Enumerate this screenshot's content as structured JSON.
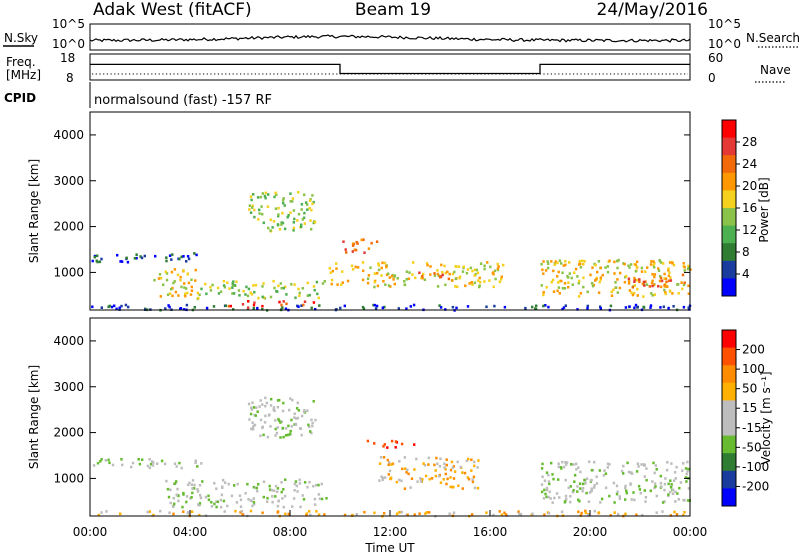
{
  "header": {
    "station": "Adak West (fitACF)",
    "beam": "Beam 19",
    "date": "24/May/2016"
  },
  "left_labels": {
    "nsky": "N.Sky",
    "freq_line1": "Freq.",
    "freq_line2": "[MHz]",
    "cpid": "CPID"
  },
  "right_labels": {
    "nsearch": "N.Search",
    "nave": "Nave"
  },
  "cpid_text": "normalsound (fast) -157 RF",
  "colors": {
    "power_scale": [
      "#0000ff",
      "#1a3c9e",
      "#2e7d32",
      "#4caf50",
      "#8bc34a",
      "#f5d01c",
      "#ff9800",
      "#f26a0a",
      "#e53935",
      "#ff0000"
    ],
    "velocity_scale": [
      "#0000ff",
      "#1a3c9e",
      "#2e7d32",
      "#66bb30",
      "#bdbdbd",
      "#bdbdbd",
      "#ffb000",
      "#ff8c00",
      "#ff5000",
      "#ff0000"
    ]
  },
  "chart_data": [
    {
      "type": "line",
      "name": "noise",
      "ylabel_left": "N.Sky",
      "ylabel_right": "N.Search",
      "y_ticks_left": [
        "10^5",
        "10^0"
      ],
      "y_ticks_right": [
        "10^5",
        "10^0"
      ],
      "x_range_hours": [
        0,
        24
      ]
    },
    {
      "type": "line",
      "name": "frequency_nave",
      "ylabel_left": "Freq. [MHz]",
      "ylabel_right": "Nave",
      "y_ticks_left": [
        "18",
        "8"
      ],
      "y_ticks_right": [
        "60",
        "0"
      ],
      "ylim_left": [
        8,
        18
      ],
      "x": [
        0,
        10,
        10,
        18,
        18,
        24
      ],
      "freq_mhz": [
        14,
        14,
        10.5,
        10.5,
        14,
        14
      ]
    },
    {
      "type": "heatmap",
      "name": "power",
      "ylabel": "Slant Range [km]",
      "y_ticks": [
        1000,
        2000,
        3000,
        4000
      ],
      "ylim": [
        180,
        4500
      ],
      "colorbar_label": "Power [dB]",
      "colorbar_ticks": [
        "4",
        "8",
        "12",
        "16",
        "20",
        "24",
        "28"
      ],
      "regions": [
        {
          "t0": 0.0,
          "t1": 4.5,
          "r0": 1250,
          "r1": 1450,
          "level": 1
        },
        {
          "t0": 2.5,
          "t1": 4.2,
          "r0": 500,
          "r1": 1100,
          "level": 5
        },
        {
          "t0": 4.2,
          "t1": 9.5,
          "r0": 450,
          "r1": 850,
          "level": 4
        },
        {
          "t0": 6.3,
          "t1": 9.0,
          "r0": 1900,
          "r1": 2800,
          "level": 4
        },
        {
          "t0": 9.5,
          "t1": 16.5,
          "r0": 700,
          "r1": 1250,
          "level": 5
        },
        {
          "t0": 13.0,
          "t1": 14.5,
          "r0": 850,
          "r1": 1050,
          "level": 7
        },
        {
          "t0": 18.0,
          "t1": 24.0,
          "r0": 500,
          "r1": 1300,
          "level": 5
        },
        {
          "t0": 21.5,
          "t1": 24.0,
          "r0": 700,
          "r1": 1000,
          "level": 7
        },
        {
          "t0": 0.0,
          "t1": 24.0,
          "r0": 200,
          "r1": 320,
          "level": 1
        },
        {
          "t0": 5.5,
          "t1": 9.0,
          "r0": 250,
          "r1": 400,
          "level": 8
        },
        {
          "t0": 10.0,
          "t1": 11.5,
          "r0": 1450,
          "r1": 1750,
          "level": 7
        }
      ]
    },
    {
      "type": "heatmap",
      "name": "velocity",
      "ylabel": "Slant Range [km]",
      "xlabel": "Time UT",
      "x_ticks": [
        "00:00",
        "04:00",
        "08:00",
        "12:00",
        "16:00",
        "20:00",
        "00:00"
      ],
      "y_ticks": [
        1000,
        2000,
        3000,
        4000
      ],
      "ylim": [
        180,
        4500
      ],
      "colorbar_label": "Velocity [m s^-1]",
      "colorbar_ticks": [
        "200",
        "100",
        "50",
        "15",
        "-15",
        "-50",
        "-100",
        "-200"
      ],
      "regions": [
        {
          "t0": 0.0,
          "t1": 4.5,
          "r0": 1250,
          "r1": 1450,
          "level": 4
        },
        {
          "t0": 3.0,
          "t1": 9.5,
          "r0": 400,
          "r1": 1000,
          "level": 4
        },
        {
          "t0": 6.3,
          "t1": 9.0,
          "r0": 1900,
          "r1": 2800,
          "level": 4
        },
        {
          "t0": 11.5,
          "t1": 15.5,
          "r0": 800,
          "r1": 1500,
          "level": 6
        },
        {
          "t0": 18.0,
          "t1": 24.0,
          "r0": 500,
          "r1": 1400,
          "level": 4
        },
        {
          "t0": 11.0,
          "t1": 13.0,
          "r0": 1700,
          "r1": 1850,
          "level": 9
        },
        {
          "t0": 0.0,
          "t1": 24.0,
          "r0": 200,
          "r1": 320,
          "level": 6
        }
      ]
    }
  ]
}
